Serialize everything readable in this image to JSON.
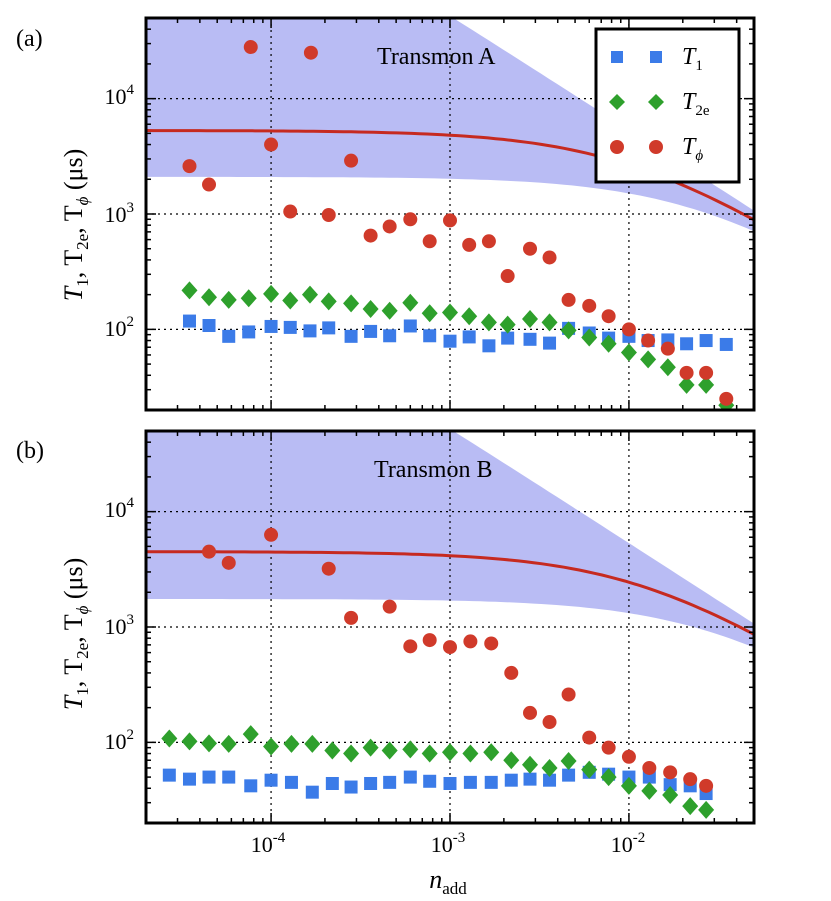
{
  "chart_data": [
    {
      "type": "scatter",
      "panel_label": "(a)",
      "title": "Transmon A",
      "xlabel": "",
      "ylabel_parts": [
        "T",
        "1",
        ", T",
        "2e",
        ", T",
        "ϕ",
        " (μs)"
      ],
      "xscale": "log",
      "yscale": "log",
      "xlim": [
        2e-05,
        0.05
      ],
      "ylim": [
        20,
        50000
      ],
      "ytick_labels": [
        {
          "base": "10",
          "exp": "2",
          "value": 100
        },
        {
          "base": "10",
          "exp": "3",
          "value": 1000
        },
        {
          "base": "10",
          "exp": "4",
          "value": 10000
        }
      ],
      "grid": true,
      "legend": {
        "position": "top-right",
        "entries": [
          {
            "series": "T1",
            "label_base": "T",
            "label_sub": "1"
          },
          {
            "series": "T2e",
            "label_base": "T",
            "label_sub": "2e"
          },
          {
            "series": "Tphi",
            "label_base": "T",
            "label_sub": "ϕ"
          }
        ]
      },
      "series": [
        {
          "name": "T1",
          "marker": "square",
          "color": "#3b7be8",
          "x": [
            3.5e-05,
            4.5e-05,
            5.8e-05,
            7.5e-05,
            0.0001,
            0.000128,
            0.000165,
            0.00021,
            0.00028,
            0.00036,
            0.00046,
            0.0006,
            0.00077,
            0.001,
            0.00128,
            0.00165,
            0.0021,
            0.0028,
            0.0036,
            0.0046,
            0.006,
            0.0077,
            0.01,
            0.0128,
            0.0165,
            0.021,
            0.027,
            0.035
          ],
          "y": [
            118,
            108,
            87,
            95,
            106,
            104,
            97,
            103,
            87,
            96,
            88,
            107,
            88,
            79,
            86,
            72,
            84,
            82,
            76,
            102,
            93,
            84,
            87,
            80,
            81,
            75,
            80,
            74
          ]
        },
        {
          "name": "T2e",
          "marker": "diamond",
          "color": "#2ea02c",
          "x": [
            3.5e-05,
            4.5e-05,
            5.8e-05,
            7.5e-05,
            0.0001,
            0.000128,
            0.000165,
            0.00021,
            0.00028,
            0.00036,
            0.00046,
            0.0006,
            0.00077,
            0.001,
            0.00128,
            0.00165,
            0.0021,
            0.0028,
            0.0036,
            0.0046,
            0.006,
            0.0077,
            0.01,
            0.0128,
            0.0165,
            0.021,
            0.027,
            0.035
          ],
          "y": [
            218,
            190,
            180,
            186,
            203,
            178,
            200,
            175,
            168,
            150,
            145,
            170,
            138,
            140,
            130,
            115,
            110,
            123,
            115,
            98,
            85,
            75,
            63,
            55,
            47,
            33,
            33,
            22
          ]
        },
        {
          "name": "Tphi",
          "marker": "circle",
          "color": "#d03a2a",
          "x": [
            3.5e-05,
            4.5e-05,
            7.7e-05,
            0.0001,
            0.000128,
            0.000167,
            0.00021,
            0.00028,
            0.00036,
            0.00046,
            0.0006,
            0.00077,
            0.001,
            0.00128,
            0.00165,
            0.0021,
            0.0028,
            0.0036,
            0.0046,
            0.006,
            0.0077,
            0.01,
            0.0128,
            0.0165,
            0.021,
            0.027,
            0.035
          ],
          "y": [
            2600,
            1800,
            28000,
            4000,
            1050,
            25000,
            980,
            2900,
            650,
            780,
            900,
            580,
            880,
            540,
            580,
            290,
            500,
            420,
            180,
            160,
            130,
            100,
            80,
            68,
            42,
            42,
            25
          ]
        }
      ],
      "fit": {
        "name": "fit",
        "color": "#c62a20",
        "tau0": 5300,
        "k": 53.5,
        "description": "T = 1/(1/tau0 + n/k)"
      },
      "band": {
        "color": "#b9bcf4",
        "low_tau0": 2100,
        "high_tau0": 2000000,
        "k": 53.5
      }
    },
    {
      "type": "scatter",
      "panel_label": "(b)",
      "title": "Transmon B",
      "xlabel_base": "n",
      "xlabel_sub": "add",
      "ylabel_parts": [
        "T",
        "1",
        ", T",
        "2e",
        ", T",
        "ϕ",
        " (μs)"
      ],
      "xscale": "log",
      "yscale": "log",
      "xlim": [
        2e-05,
        0.05
      ],
      "ylim": [
        20,
        50000
      ],
      "xtick_labels": [
        {
          "base": "10",
          "exp": "-4",
          "value": 0.0001
        },
        {
          "base": "10",
          "exp": "-3",
          "value": 0.001
        },
        {
          "base": "10",
          "exp": "-2",
          "value": 0.01
        }
      ],
      "ytick_labels": [
        {
          "base": "10",
          "exp": "2",
          "value": 100
        },
        {
          "base": "10",
          "exp": "3",
          "value": 1000
        },
        {
          "base": "10",
          "exp": "4",
          "value": 10000
        }
      ],
      "grid": true,
      "series": [
        {
          "name": "T1",
          "marker": "square",
          "color": "#3b7be8",
          "x": [
            2.7e-05,
            3.5e-05,
            4.5e-05,
            5.8e-05,
            7.7e-05,
            0.0001,
            0.00013,
            0.00017,
            0.00022,
            0.00028,
            0.00036,
            0.00046,
            0.0006,
            0.00077,
            0.001,
            0.0013,
            0.0017,
            0.0022,
            0.0028,
            0.0036,
            0.0046,
            0.006,
            0.0077,
            0.01,
            0.013,
            0.017,
            0.022,
            0.027
          ],
          "y": [
            52,
            48,
            50,
            50,
            42,
            47,
            45,
            37,
            44,
            41,
            44,
            45,
            50,
            46,
            44,
            45,
            45,
            47,
            48,
            47,
            52,
            55,
            53,
            50,
            50,
            43,
            42,
            36
          ]
        },
        {
          "name": "T2e",
          "marker": "diamond",
          "color": "#2ea02c",
          "x": [
            2.7e-05,
            3.5e-05,
            4.5e-05,
            5.8e-05,
            7.7e-05,
            0.0001,
            0.00013,
            0.00017,
            0.00022,
            0.00028,
            0.00036,
            0.00046,
            0.0006,
            0.00077,
            0.001,
            0.0013,
            0.0017,
            0.0022,
            0.0028,
            0.0036,
            0.0046,
            0.006,
            0.0077,
            0.01,
            0.013,
            0.017,
            0.022,
            0.027
          ],
          "y": [
            108,
            102,
            98,
            97,
            118,
            92,
            97,
            97,
            85,
            80,
            90,
            85,
            87,
            80,
            82,
            80,
            82,
            70,
            64,
            60,
            69,
            58,
            50,
            42,
            38,
            35,
            28,
            26
          ]
        },
        {
          "name": "Tphi",
          "marker": "circle",
          "color": "#d03a2a",
          "x": [
            4.5e-05,
            5.8e-05,
            0.0001,
            0.00021,
            0.00028,
            0.00046,
            0.0006,
            0.00077,
            0.001,
            0.0013,
            0.0017,
            0.0022,
            0.0028,
            0.0036,
            0.0046,
            0.006,
            0.0077,
            0.01,
            0.013,
            0.017,
            0.022,
            0.027
          ],
          "y": [
            4500,
            3600,
            6300,
            3200,
            1200,
            1500,
            680,
            770,
            670,
            750,
            720,
            400,
            180,
            150,
            260,
            110,
            90,
            75,
            60,
            55,
            48,
            42
          ]
        }
      ],
      "fit": {
        "name": "fit",
        "color": "#c62a20",
        "tau0": 4500,
        "k": 53.5,
        "description": "T = 1/(1/tau0 + n/k)"
      },
      "band": {
        "color": "#b9bcf4",
        "low_tau0": 1750,
        "high_tau0": 2000000,
        "k": 53.5
      }
    }
  ]
}
